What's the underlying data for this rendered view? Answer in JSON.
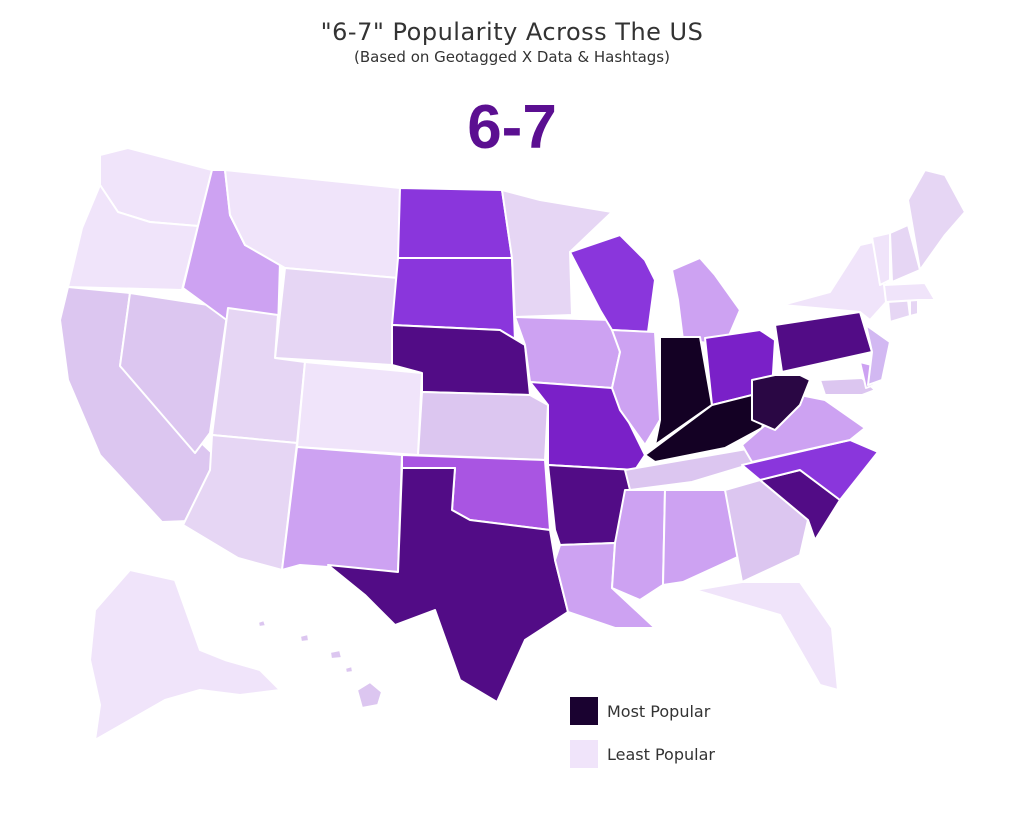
{
  "title": "\"6-7\" Popularity Across The US",
  "subtitle": "(Based on Geotagged X Data & Hashtags)",
  "big_label": "6-7",
  "big_label_color": "#5b0f91",
  "legend": {
    "most_label": "Most Popular",
    "least_label": "Least Popular",
    "most_color": "#1a0230",
    "least_color": "#f0e4fa"
  },
  "palette": {
    "l0": "#f0e4fa",
    "l1": "#e6d6f4",
    "l2": "#dcc6f0",
    "l3": "#d2b8f2",
    "l4": "#cda2f2",
    "l5": "#a955e2",
    "l6": "#8a36dc",
    "l7": "#7a20c8",
    "l8": "#520c86",
    "l9": "#2a0744",
    "l10": "#140124"
  },
  "states": [
    {
      "name": "Washington",
      "level": "l0"
    },
    {
      "name": "Oregon",
      "level": "l0"
    },
    {
      "name": "California",
      "level": "l2"
    },
    {
      "name": "Nevada",
      "level": "l2"
    },
    {
      "name": "Idaho",
      "level": "l4"
    },
    {
      "name": "Montana",
      "level": "l0"
    },
    {
      "name": "Wyoming",
      "level": "l1"
    },
    {
      "name": "Utah",
      "level": "l1"
    },
    {
      "name": "Arizona",
      "level": "l1"
    },
    {
      "name": "Colorado",
      "level": "l0"
    },
    {
      "name": "New Mexico",
      "level": "l4"
    },
    {
      "name": "North Dakota",
      "level": "l6"
    },
    {
      "name": "South Dakota",
      "level": "l6"
    },
    {
      "name": "Nebraska",
      "level": "l8"
    },
    {
      "name": "Kansas",
      "level": "l2"
    },
    {
      "name": "Oklahoma",
      "level": "l5"
    },
    {
      "name": "Texas",
      "level": "l8"
    },
    {
      "name": "Minnesota",
      "level": "l1"
    },
    {
      "name": "Iowa",
      "level": "l4"
    },
    {
      "name": "Missouri",
      "level": "l7"
    },
    {
      "name": "Arkansas",
      "level": "l8"
    },
    {
      "name": "Louisiana",
      "level": "l4"
    },
    {
      "name": "Wisconsin",
      "level": "l6"
    },
    {
      "name": "Illinois",
      "level": "l4"
    },
    {
      "name": "Michigan",
      "level": "l4"
    },
    {
      "name": "Indiana",
      "level": "l10"
    },
    {
      "name": "Ohio",
      "level": "l7"
    },
    {
      "name": "Kentucky",
      "level": "l10"
    },
    {
      "name": "Tennessee",
      "level": "l2"
    },
    {
      "name": "Mississippi",
      "level": "l4"
    },
    {
      "name": "Alabama",
      "level": "l4"
    },
    {
      "name": "Georgia",
      "level": "l2"
    },
    {
      "name": "Florida",
      "level": "l0"
    },
    {
      "name": "South Carolina",
      "level": "l8"
    },
    {
      "name": "North Carolina",
      "level": "l6"
    },
    {
      "name": "Virginia",
      "level": "l4"
    },
    {
      "name": "West Virginia",
      "level": "l9"
    },
    {
      "name": "Pennsylvania",
      "level": "l8"
    },
    {
      "name": "New York",
      "level": "l0"
    },
    {
      "name": "Maryland",
      "level": "l2"
    },
    {
      "name": "Delaware",
      "level": "l4"
    },
    {
      "name": "New Jersey",
      "level": "l3"
    },
    {
      "name": "Connecticut",
      "level": "l1"
    },
    {
      "name": "Rhode Island",
      "level": "l1"
    },
    {
      "name": "Massachusetts",
      "level": "l0"
    },
    {
      "name": "Vermont",
      "level": "l0"
    },
    {
      "name": "New Hampshire",
      "level": "l1"
    },
    {
      "name": "Maine",
      "level": "l1"
    },
    {
      "name": "Alaska",
      "level": "l0"
    },
    {
      "name": "Hawaii",
      "level": "l2"
    }
  ]
}
